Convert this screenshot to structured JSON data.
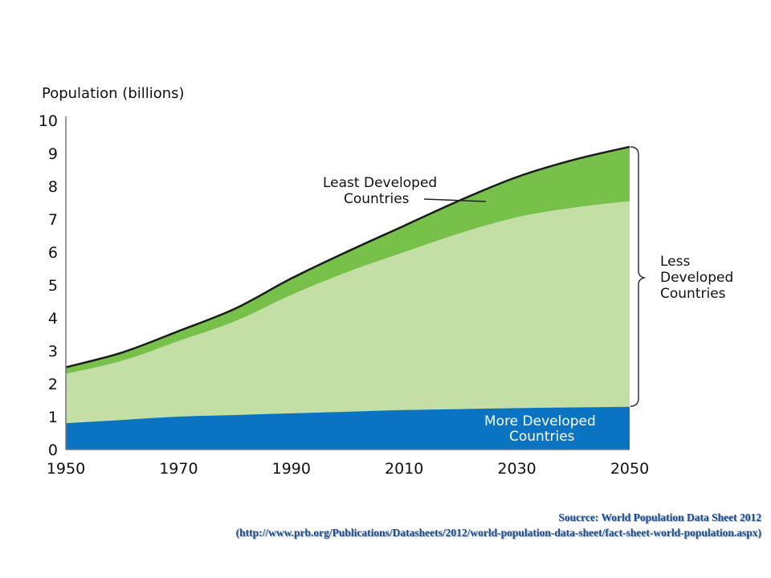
{
  "chart_data": {
    "type": "area",
    "stacked": true,
    "ylabel": "Population (billions)",
    "xlabel": "",
    "x_ticks": [
      1950,
      1970,
      1990,
      2010,
      2030,
      2050
    ],
    "y_ticks": [
      0,
      1,
      2,
      3,
      4,
      5,
      6,
      7,
      8,
      9,
      10
    ],
    "xlim": [
      1950,
      2050
    ],
    "ylim": [
      0,
      10
    ],
    "grid": false,
    "x": [
      1950,
      1960,
      1970,
      1980,
      1990,
      2000,
      2010,
      2020,
      2030,
      2040,
      2050
    ],
    "series": [
      {
        "name": "More Developed Countries",
        "color": "#0a74c2",
        "values": [
          0.8,
          0.9,
          1.0,
          1.05,
          1.1,
          1.15,
          1.2,
          1.23,
          1.26,
          1.28,
          1.3
        ]
      },
      {
        "name": "Less Developed Countries",
        "color": "#c3dfa5",
        "values": [
          1.5,
          1.8,
          2.3,
          2.85,
          3.6,
          4.25,
          4.8,
          5.35,
          5.8,
          6.07,
          6.25
        ]
      },
      {
        "name": "Least Developed Countries",
        "color": "#77c04a",
        "values": [
          0.2,
          0.25,
          0.3,
          0.38,
          0.5,
          0.62,
          0.8,
          1.0,
          1.22,
          1.45,
          1.65
        ]
      }
    ],
    "annotations": {
      "least_developed": [
        "Least Developed",
        "Countries"
      ],
      "less_developed": [
        "Less",
        "Developed",
        "Countries"
      ],
      "more_developed": [
        "More Developed",
        "Countries"
      ]
    }
  },
  "source": {
    "line1": "Soucrce:  World Population Data Sheet 2012",
    "line2": "(http://www.prb.org/Publications/Datasheets/2012/world-population-data-sheet/fact-sheet-world-population.aspx)"
  }
}
